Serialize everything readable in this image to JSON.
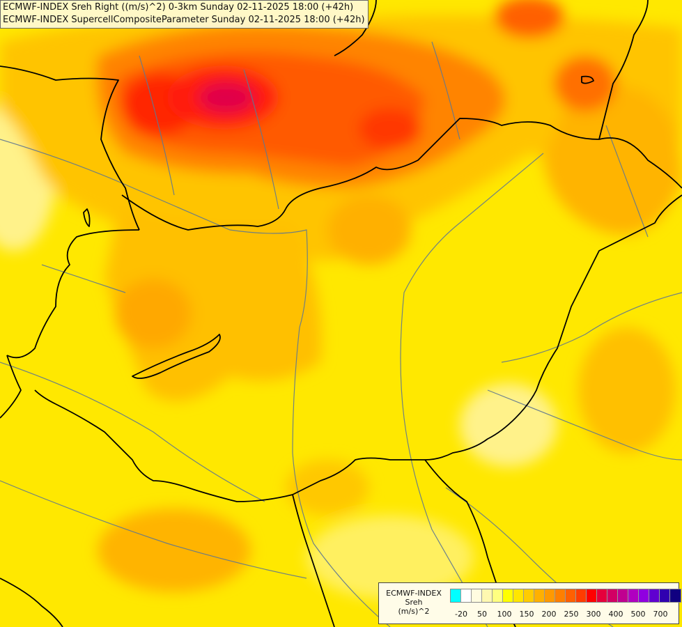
{
  "titles": [
    "ECMWF-INDEX Sreh Right ((m/s)^2) 0-3km Sunday 02-11-2025 18:00 (+42h)",
    "ECMWF-INDEX SupercellCompositeParameter Sunday 02-11-2025 18:00 (+42h)"
  ],
  "legend": {
    "line1": "ECMWF-INDEX",
    "line2": "Sreh",
    "line3": "(m/s)^2",
    "colors": [
      "#00ffff",
      "#ffffff",
      "#fffce0",
      "#fff8b0",
      "#ffff80",
      "#ffff00",
      "#ffe600",
      "#ffcc00",
      "#ffb000",
      "#ff9900",
      "#ff7f00",
      "#ff6000",
      "#ff3c00",
      "#ff0000",
      "#e6003c",
      "#d20064",
      "#c00090",
      "#b000c0",
      "#9000e0",
      "#6000d0",
      "#3000b0",
      "#100080"
    ],
    "ticks": [
      "-20",
      "50",
      "100",
      "150",
      "200",
      "250",
      "300",
      "400",
      "500",
      "700"
    ]
  },
  "colors": {
    "country_border": "#000000",
    "river": "#607890",
    "low_srh": "#ffff40",
    "mid_srh": "#ffb000",
    "high_srh": "#ff3c00",
    "peak_srh": "#e0004a"
  }
}
